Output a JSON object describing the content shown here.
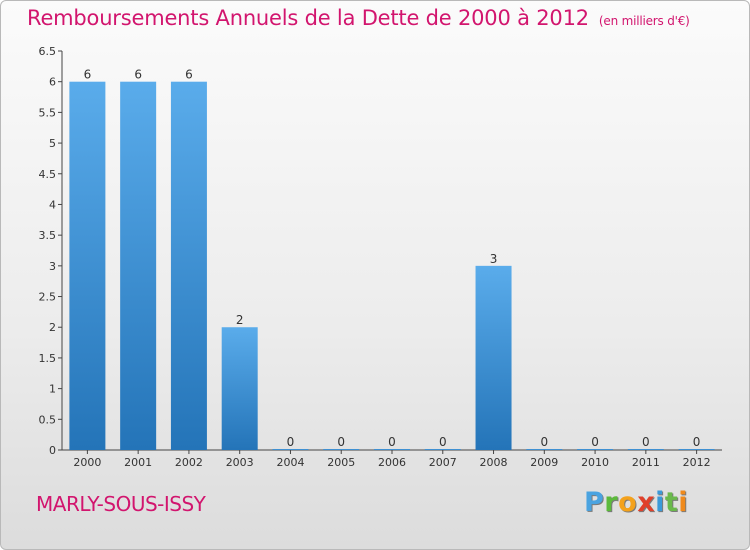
{
  "title": "Remboursements Annuels de la Dette de 2000 à 2012",
  "unit": "(en milliers d'€)",
  "commune": "MARLY-SOUS-ISSY",
  "logo": {
    "letters": [
      "P",
      "r",
      "o",
      "x",
      "i",
      "t",
      "i"
    ]
  },
  "chart_data": {
    "type": "bar",
    "categories": [
      "2000",
      "2001",
      "2002",
      "2003",
      "2004",
      "2005",
      "2006",
      "2007",
      "2008",
      "2009",
      "2010",
      "2011",
      "2012"
    ],
    "values": [
      6,
      6,
      6,
      2,
      0,
      0,
      0,
      0,
      3,
      0,
      0,
      0,
      0
    ],
    "data_labels": [
      "6",
      "6",
      "6",
      "2",
      "0",
      "0",
      "0",
      "0",
      "3",
      "0",
      "0",
      "0",
      "0"
    ],
    "ylim": [
      0,
      6.5
    ],
    "yticks": [
      0,
      0.5,
      1,
      1.5,
      2,
      2.5,
      3,
      3.5,
      4,
      4.5,
      5,
      5.5,
      6,
      6.5
    ],
    "ytick_labels": [
      "0",
      "0.5",
      "1",
      "1.5",
      "2",
      "2.5",
      "3",
      "3.5",
      "4",
      "4.5",
      "5",
      "5.5",
      "6",
      "6.5"
    ],
    "grid": false,
    "legend": false,
    "colors": {
      "bar_top": "#5aaceb",
      "bar_bottom": "#2474b8",
      "axis": "#444444",
      "text": "#333333"
    }
  }
}
